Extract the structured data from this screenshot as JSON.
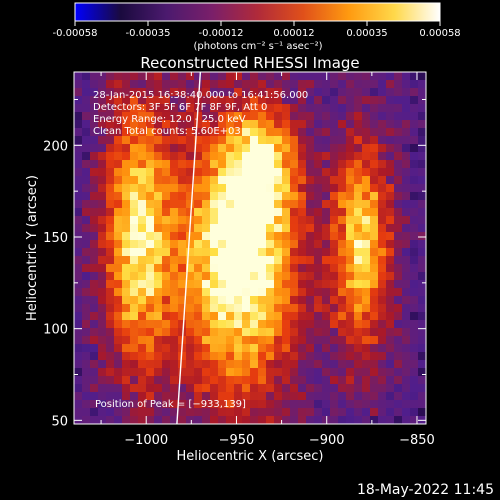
{
  "colorbar": {
    "ticks": [
      "-0.00058",
      "-0.00035",
      "-0.00012",
      "0.00012",
      "0.00035",
      "0.00058"
    ],
    "units": "(photons cm⁻² s⁻¹ asec⁻²)",
    "colors": [
      "#0000ff",
      "#1a0a3e",
      "#4b1a6e",
      "#7a1f6a",
      "#b02a3a",
      "#e0501a",
      "#ff9a10",
      "#ffd84a",
      "#ffffff"
    ]
  },
  "chart_data": {
    "type": "heatmap",
    "title": "Reconstructed RHESSI Image",
    "xlabel": "Heliocentric X (arcsec)",
    "ylabel": "Heliocentric Y (arcsec)",
    "xlim": [
      -1040,
      -845
    ],
    "ylim": [
      48,
      240
    ],
    "x_ticks": [
      -1000,
      -950,
      -900,
      -850
    ],
    "y_ticks": [
      50,
      100,
      150,
      200
    ],
    "x_tick_labels": [
      "−1000",
      "−950",
      "−900",
      "−850"
    ],
    "y_tick_labels": [
      "50",
      "100",
      "150",
      "200"
    ],
    "info_lines": [
      "28-Jan-2015 16:38:40.000 to 16:41:56.000",
      "Detectors: 3F 5F 6F 7F 8F 9F, Att 0",
      "Energy Range: 12.0 - 25.0 keV",
      "Clean    Total counts: 5.60E+03"
    ],
    "peak_text": "Position of Peak = [−933,139]",
    "peak": [
      -933,
      139
    ],
    "limb_line": [
      [
        -970,
        240
      ],
      [
        -983,
        48
      ]
    ],
    "sources": [
      {
        "x": -1005,
        "y": 150,
        "sx": 14,
        "sy": 55,
        "amp": 0.78
      },
      {
        "x": -948,
        "y": 140,
        "sx": 24,
        "sy": 55,
        "amp": 1.0
      },
      {
        "x": -935,
        "y": 190,
        "sx": 12,
        "sy": 18,
        "amp": 0.45
      },
      {
        "x": -880,
        "y": 145,
        "sx": 12,
        "sy": 45,
        "amp": 0.72
      }
    ]
  },
  "footer": {
    "date": "18-May-2022 11:45"
  }
}
